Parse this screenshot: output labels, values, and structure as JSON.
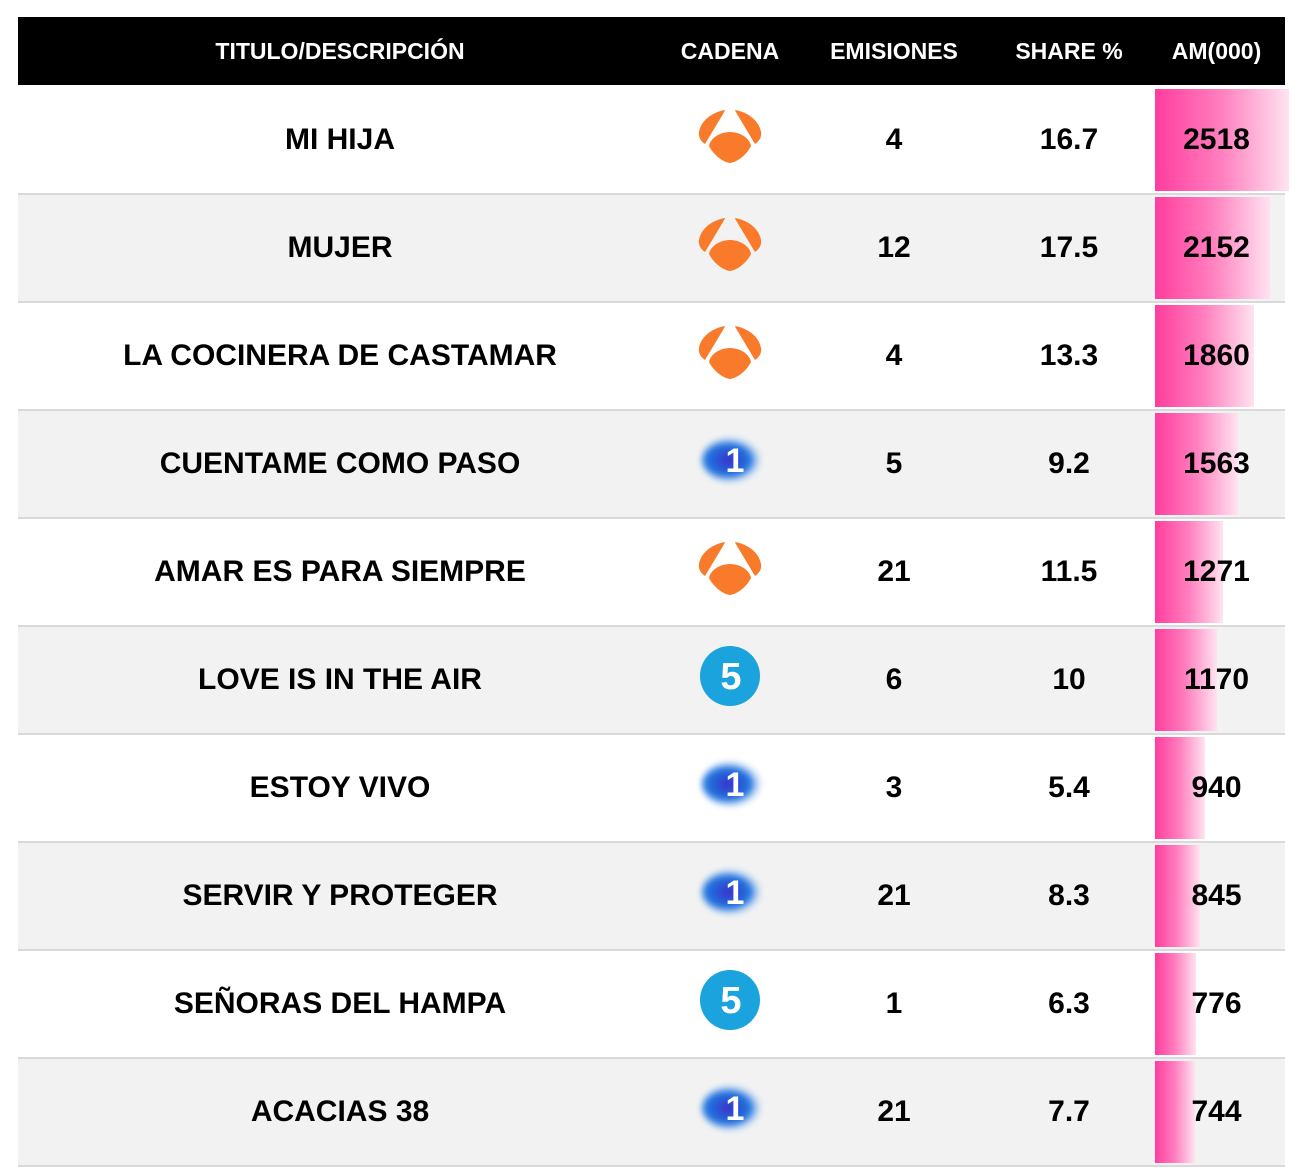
{
  "header": {
    "title": "TITULO/DESCRIPCIÓN",
    "channel": "CADENA",
    "broadcasts": "EMISIONES",
    "share": "SHARE %",
    "audience": "AM(000)"
  },
  "colors": {
    "antena3": "#f97a2a",
    "la1_dark": "#3a2fc8",
    "la1_light": "#1f78e0",
    "telecinco": "#1aa3dc",
    "bar_start": "#ff3d9e",
    "bar_end": "#ffe3f1"
  },
  "rows": [
    {
      "title": "MI HIJA",
      "channel": "antena3",
      "channel_icon": "antena3-logo-icon",
      "broadcasts": "4",
      "share": "16.7",
      "audience": "2518"
    },
    {
      "title": "MUJER",
      "channel": "antena3",
      "channel_icon": "antena3-logo-icon",
      "broadcasts": "12",
      "share": "17.5",
      "audience": "2152"
    },
    {
      "title": "LA COCINERA DE CASTAMAR",
      "channel": "antena3",
      "channel_icon": "antena3-logo-icon",
      "broadcasts": "4",
      "share": "13.3",
      "audience": "1860"
    },
    {
      "title": "CUENTAME COMO PASO",
      "channel": "la1",
      "channel_icon": "la1-logo-icon",
      "broadcasts": "5",
      "share": "9.2",
      "audience": "1563"
    },
    {
      "title": "AMAR ES PARA SIEMPRE",
      "channel": "antena3",
      "channel_icon": "antena3-logo-icon",
      "broadcasts": "21",
      "share": "11.5",
      "audience": "1271"
    },
    {
      "title": "LOVE IS IN THE AIR",
      "channel": "telecinco",
      "channel_icon": "telecinco-logo-icon",
      "broadcasts": "6",
      "share": "10",
      "audience": "1170"
    },
    {
      "title": "ESTOY VIVO",
      "channel": "la1",
      "channel_icon": "la1-logo-icon",
      "broadcasts": "3",
      "share": "5.4",
      "audience": "940"
    },
    {
      "title": "SERVIR Y PROTEGER",
      "channel": "la1",
      "channel_icon": "la1-logo-icon",
      "broadcasts": "21",
      "share": "8.3",
      "audience": "845"
    },
    {
      "title": "SEÑORAS DEL HAMPA",
      "channel": "telecinco",
      "channel_icon": "telecinco-logo-icon",
      "broadcasts": "1",
      "share": "6.3",
      "audience": "776"
    },
    {
      "title": "ACACIAS 38",
      "channel": "la1",
      "channel_icon": "la1-logo-icon",
      "broadcasts": "21",
      "share": "7.7",
      "audience": "744"
    }
  ],
  "chart_data": {
    "type": "table",
    "title": "",
    "columns": [
      "TITULO/DESCRIPCIÓN",
      "CADENA",
      "EMISIONES",
      "SHARE %",
      "AM(000)"
    ],
    "categories": [
      "MI HIJA",
      "MUJER",
      "LA COCINERA DE CASTAMAR",
      "CUENTAME COMO PASO",
      "AMAR ES PARA SIEMPRE",
      "LOVE IS IN THE AIR",
      "ESTOY VIVO",
      "SERVIR Y PROTEGER",
      "SEÑORAS DEL HAMPA",
      "ACACIAS 38"
    ],
    "series": [
      {
        "name": "CADENA",
        "values": [
          "Antena 3",
          "Antena 3",
          "Antena 3",
          "La 1",
          "Antena 3",
          "Telecinco",
          "La 1",
          "La 1",
          "Telecinco",
          "La 1"
        ]
      },
      {
        "name": "EMISIONES",
        "values": [
          4,
          12,
          4,
          5,
          21,
          6,
          3,
          21,
          1,
          21
        ]
      },
      {
        "name": "SHARE %",
        "values": [
          16.7,
          17.5,
          13.3,
          9.2,
          11.5,
          10,
          5.4,
          8.3,
          6.3,
          7.7
        ]
      },
      {
        "name": "AM(000)",
        "values": [
          2518,
          2152,
          1860,
          1563,
          1271,
          1170,
          940,
          845,
          776,
          744
        ]
      }
    ],
    "data_bars": {
      "column": "AM(000)",
      "max": 2518,
      "color": "#ff3d9e",
      "gradient": true
    }
  }
}
